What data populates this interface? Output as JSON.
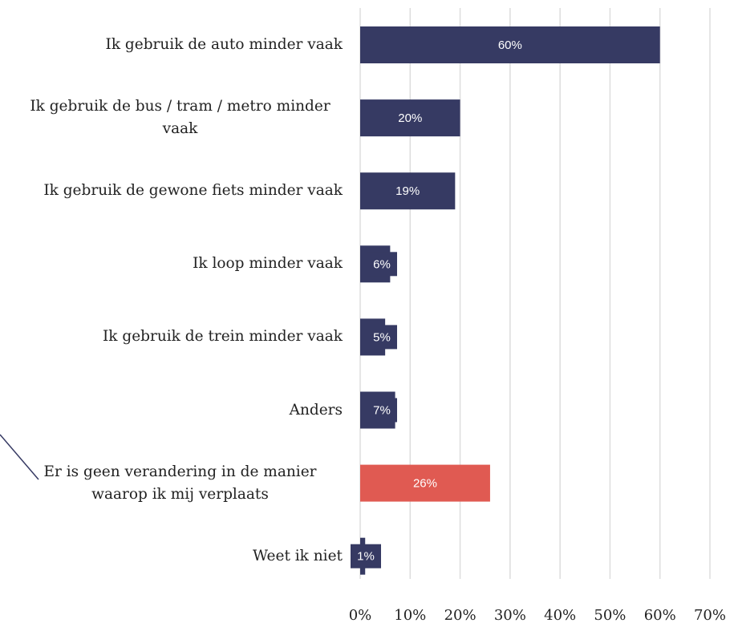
{
  "chart_data": {
    "type": "bar",
    "orientation": "horizontal",
    "categories": [
      "Ik gebruik de auto minder vaak",
      "Ik gebruik de bus / tram / metro minder vaak",
      "Ik gebruik de gewone fiets minder vaak",
      "Ik loop minder vaak",
      "Ik gebruik de trein minder vaak",
      "Anders",
      "Er is geen verandering in de manier waarop ik mij verplaats",
      "Weet ik niet"
    ],
    "values": [
      60,
      20,
      19,
      6,
      5,
      7,
      26,
      1
    ],
    "value_labels": [
      "60%",
      "20%",
      "19%",
      "6%",
      "5%",
      "7%",
      "26%",
      "1%"
    ],
    "colors": [
      "#363a63",
      "#363a63",
      "#363a63",
      "#363a63",
      "#363a63",
      "#363a63",
      "#e05a52",
      "#363a63"
    ],
    "xlim": [
      0,
      70
    ],
    "xticks": [
      {
        "value": 0,
        "label": "0%"
      },
      {
        "value": 10,
        "label": "10%"
      },
      {
        "value": 20,
        "label": "20%"
      },
      {
        "value": 30,
        "label": "30%"
      },
      {
        "value": 40,
        "label": "40%"
      },
      {
        "value": 50,
        "label": "50%"
      },
      {
        "value": 60,
        "label": "60%"
      },
      {
        "value": 70,
        "label": "70%"
      }
    ],
    "grid": true
  }
}
